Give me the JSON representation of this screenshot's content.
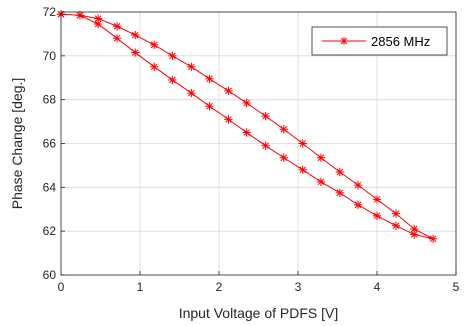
{
  "chart_data": {
    "type": "line",
    "xlabel": "Input Voltage of PDFS [V]",
    "ylabel": "Phase Change [deg.]",
    "xlim": [
      0,
      5
    ],
    "ylim": [
      60,
      72
    ],
    "xticks": [
      "0",
      "1",
      "2",
      "3",
      "4",
      "5"
    ],
    "yticks": [
      "60",
      "62",
      "64",
      "66",
      "68",
      "70",
      "72"
    ],
    "grid": true,
    "legend_position": "top-right",
    "series": [
      {
        "name": "2856 MHz",
        "color": "#ff0000",
        "marker": "asterisk",
        "x": [
          0.0,
          0.24,
          0.47,
          0.71,
          0.94,
          1.18,
          1.41,
          1.65,
          1.88,
          2.12,
          2.35,
          2.59,
          2.82,
          3.06,
          3.29,
          3.53,
          3.76,
          4.0,
          4.24,
          4.47,
          4.71,
          4.47,
          4.24,
          4.0,
          3.76,
          3.53,
          3.29,
          3.06,
          2.82,
          2.59,
          2.35,
          2.12,
          1.88,
          1.65,
          1.41,
          1.18,
          0.94,
          0.71,
          0.47,
          0.24,
          0.0
        ],
        "y": [
          71.9,
          71.85,
          71.45,
          70.8,
          70.15,
          69.5,
          68.9,
          68.3,
          67.7,
          67.1,
          66.5,
          65.9,
          65.35,
          64.8,
          64.25,
          63.75,
          63.2,
          62.7,
          62.25,
          61.85,
          61.65,
          62.1,
          62.8,
          63.45,
          64.1,
          64.7,
          65.35,
          66.0,
          66.65,
          67.25,
          67.85,
          68.4,
          68.95,
          69.5,
          70.0,
          70.5,
          70.95,
          71.35,
          71.7,
          71.85,
          71.9
        ]
      }
    ]
  }
}
